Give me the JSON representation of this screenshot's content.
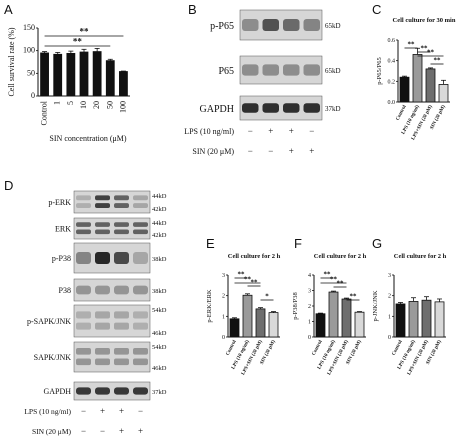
{
  "panel_letters": [
    "A",
    "B",
    "C",
    "D",
    "E",
    "F",
    "G"
  ],
  "chart_data": [
    {
      "panel": "A",
      "type": "bar",
      "categories": [
        "Control",
        "1",
        "5",
        "10",
        "20",
        "50",
        "100"
      ],
      "values": [
        95,
        92,
        94,
        97,
        98,
        78,
        54
      ],
      "errors": [
        3,
        4,
        5,
        6,
        7,
        3,
        1
      ],
      "title": "",
      "xlabel": "SIN concentration (μM)",
      "ylabel": "Cell survival rate (%)",
      "ylim": [
        0,
        150
      ],
      "yticks": [
        "0",
        "50",
        "100",
        "150"
      ],
      "sig": [
        "**",
        "**"
      ]
    },
    {
      "panel": "C",
      "type": "bar",
      "categories": [
        "Control",
        "LPS (10 ng/ml)",
        "LPS+SIN (20 μM)",
        "SIN (20 μM)"
      ],
      "values": [
        0.24,
        0.46,
        0.32,
        0.17
      ],
      "errors": [
        0.01,
        0.06,
        0.01,
        0.04
      ],
      "title": "Cell culture for 30 min",
      "ylabel": "p-P65/P65",
      "ylim": [
        0,
        0.6
      ],
      "yticks": [
        "0.0",
        "0.2",
        "0.4",
        "0.6"
      ],
      "sig": [
        "**",
        "**",
        "**",
        "**"
      ]
    },
    {
      "panel": "E",
      "type": "bar",
      "categories": [
        "Control",
        "LPS (10 ng/ml)",
        "LPS+SIN (20 μM)",
        "SIN (20 μM)"
      ],
      "values": [
        0.88,
        2.02,
        1.36,
        1.18
      ],
      "errors": [
        0.05,
        0.07,
        0.06,
        0.05
      ],
      "title": "Cell culture for 2 h",
      "ylabel": "p-ERK/ERK",
      "ylim": [
        0,
        3
      ],
      "yticks": [
        "0",
        "1",
        "2",
        "3"
      ],
      "sig": [
        "**",
        "**",
        "**",
        "*"
      ]
    },
    {
      "panel": "F",
      "type": "bar",
      "categories": [
        "Control",
        "LPS (10 ng/ml)",
        "LPS+SIN (20 μM)",
        "SIN (20 μM)"
      ],
      "values": [
        1.5,
        2.9,
        2.45,
        1.6
      ],
      "errors": [
        0.04,
        0.06,
        0.06,
        0.04
      ],
      "title": "Cell culture for 2 h",
      "ylabel": "p-P38/P38",
      "ylim": [
        0,
        4
      ],
      "yticks": [
        "0",
        "1",
        "2",
        "3",
        "4"
      ],
      "sig": [
        "**",
        "**",
        "**",
        "**"
      ]
    },
    {
      "panel": "G",
      "type": "bar",
      "categories": [
        "Control",
        "LPS (10 ng/ml)",
        "LPS+SIN (20 μM)",
        "SIN (20 μM)"
      ],
      "values": [
        1.6,
        1.72,
        1.78,
        1.7
      ],
      "errors": [
        0.07,
        0.18,
        0.17,
        0.14
      ],
      "title": "Cell culture for 2 h",
      "ylabel": "p-JNK/JNK",
      "ylim": [
        0,
        3
      ],
      "yticks": [
        "0",
        "1",
        "2",
        "3"
      ],
      "sig": []
    }
  ],
  "blot_B": {
    "rows": [
      {
        "label": "p-P65",
        "kd": "65kD"
      },
      {
        "label": "P65",
        "kd": "65kD"
      },
      {
        "label": "GAPDH",
        "kd": "37kD"
      }
    ],
    "treatments": [
      {
        "label": "LPS (10 ng/ml)",
        "signs": [
          "−",
          "+",
          "+",
          "−"
        ]
      },
      {
        "label": "SIN (20 μM)",
        "signs": [
          "−",
          "−",
          "+",
          "+"
        ]
      }
    ]
  },
  "blot_D": {
    "rows": [
      {
        "label": "p-ERK",
        "kd": [
          "44kD",
          "42kD"
        ]
      },
      {
        "label": "ERK",
        "kd": [
          "44kD",
          "42kD"
        ]
      },
      {
        "label": "p-P38",
        "kd": [
          "38kD"
        ]
      },
      {
        "label": "P38",
        "kd": [
          "38kD"
        ]
      },
      {
        "label": "p-SAPK/JNK",
        "kd": [
          "54kD",
          "46kD"
        ]
      },
      {
        "label": "SAPK/JNK",
        "kd": [
          "54kD",
          "46kD"
        ]
      },
      {
        "label": "GAPDH",
        "kd": [
          "37kD"
        ]
      }
    ],
    "treatments": [
      {
        "label": "LPS (10 ng/ml)",
        "signs": [
          "−",
          "+",
          "+",
          "−"
        ]
      },
      {
        "label": "SIN (20 μM)",
        "signs": [
          "−",
          "−",
          "+",
          "+"
        ]
      }
    ]
  },
  "colors": {
    "black": "#111111",
    "dark_gray": "#6e6e6e",
    "gray": "#9a9a9a",
    "light_gray": "#d9d9d9",
    "blot_bg": "#d6d6d6"
  }
}
